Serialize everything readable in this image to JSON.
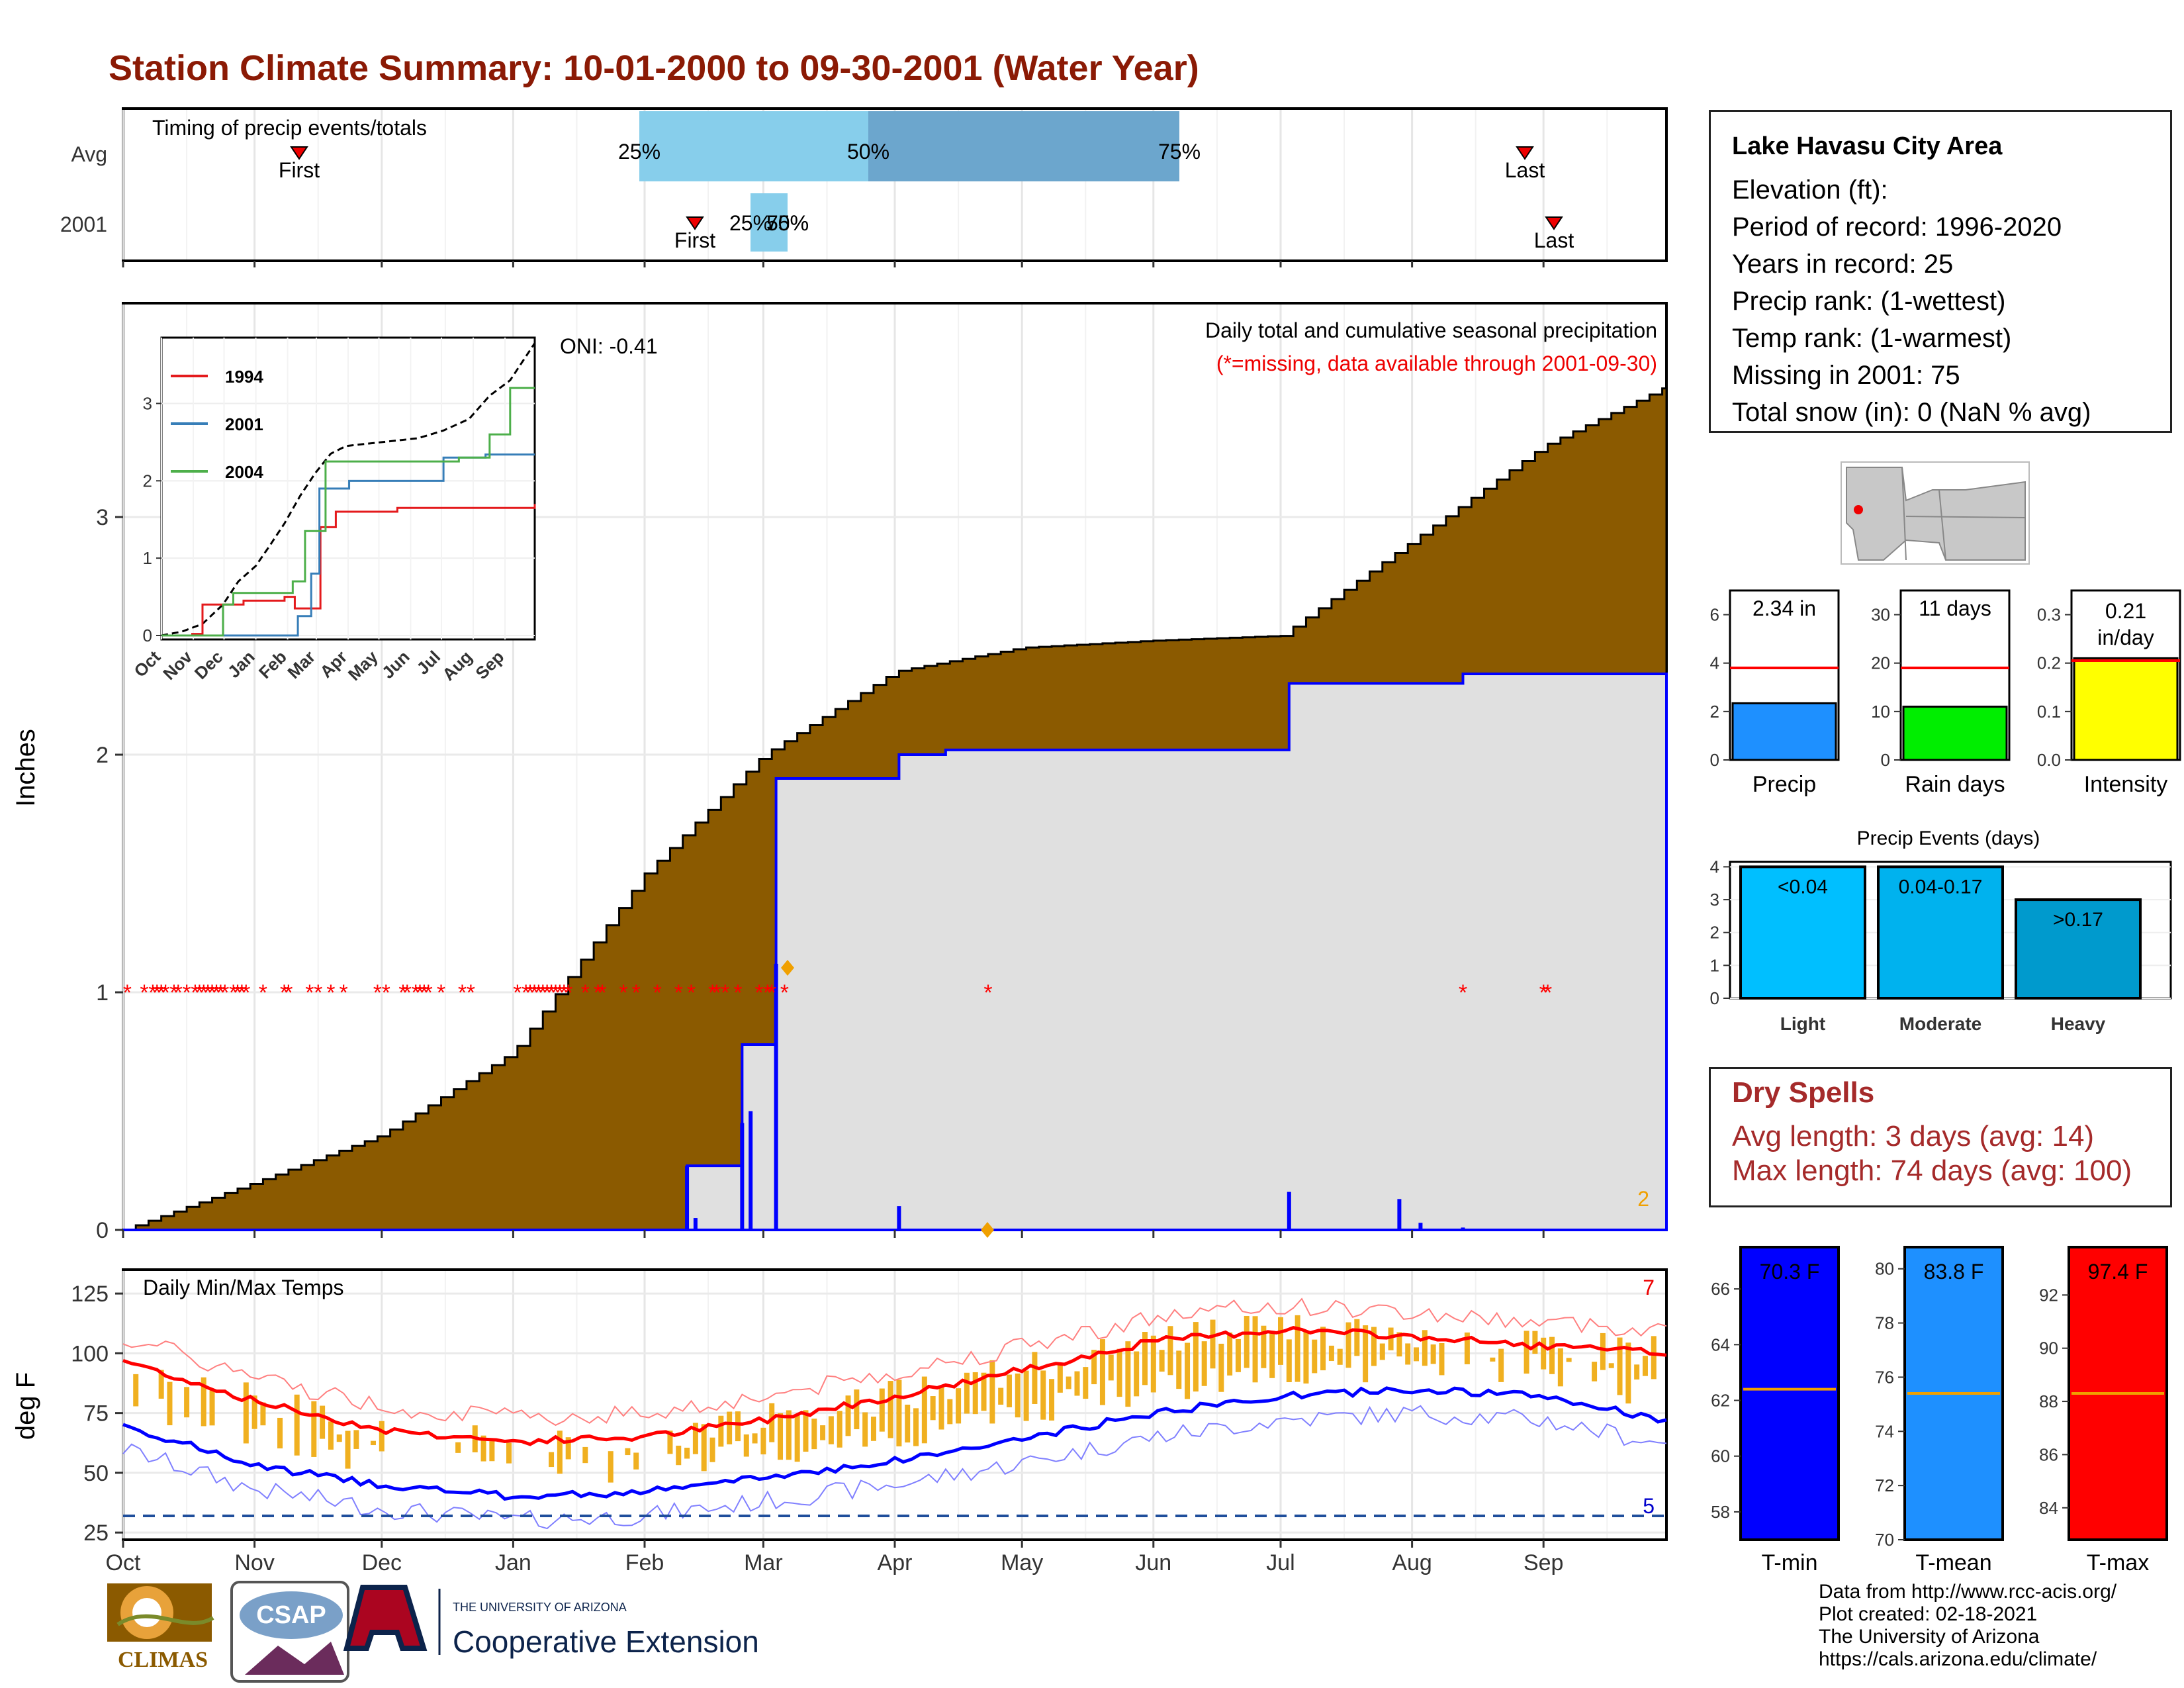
{
  "title": "Station Climate Summary: 10-01-2000 to 09-30-2001 (Water Year)",
  "colors": {
    "title": "#8b1a05",
    "cumulative": "#8b5a00",
    "avg_fill": "#e0e0e0",
    "precip_line": "#0000ff",
    "missing": "#ff0000",
    "bars_temp": "#f0b020",
    "tmax_line": "#ff0000",
    "tmin_line": "#0000ff"
  },
  "months": [
    "Oct",
    "Nov",
    "Dec",
    "Jan",
    "Feb",
    "Mar",
    "Apr",
    "May",
    "Jun",
    "Jul",
    "Aug",
    "Sep"
  ],
  "timing": {
    "label": "Timing of precip events/totals",
    "rows": [
      "Avg",
      "2001"
    ],
    "avg": {
      "first": "First",
      "last": "Last",
      "p25": "25%",
      "p50": "50%",
      "p75": "75%"
    },
    "y2001": {
      "first": "First",
      "last": "Last",
      "p25": "25%",
      "p50": "50%",
      "p75": "75%"
    }
  },
  "precip_panel": {
    "ylabel": "Inches",
    "yticks": [
      "0",
      "1",
      "2",
      "3"
    ],
    "caption": "Daily total and cumulative seasonal precipitation",
    "caption2": "(*=missing, data available through 2001-09-30)",
    "oni": "ONI: -0.41",
    "corner_count": "2"
  },
  "inset": {
    "months": [
      "Oct",
      "Nov",
      "Dec",
      "Jan",
      "Feb",
      "Mar",
      "Apr",
      "May",
      "Jun",
      "Jul",
      "Aug",
      "Sep"
    ],
    "yticks": [
      "0",
      "1",
      "2",
      "3"
    ],
    "legend": [
      {
        "name": "1994",
        "color": "#e41a1c"
      },
      {
        "name": "2001",
        "color": "#377eb8"
      },
      {
        "name": "2004",
        "color": "#4daf4a"
      }
    ]
  },
  "temp_panel": {
    "ylabel": "deg F",
    "title": "Daily Min/Max Temps",
    "yticks": [
      "25",
      "50",
      "75",
      "100",
      "125"
    ],
    "count_top": "7",
    "count_bottom": "5"
  },
  "station": {
    "name": "Lake Havasu City Area",
    "elevation": "Elevation (ft):",
    "period": "Period of record: 1996-2020",
    "years": "Years in record: 25",
    "precip_rank": "Precip rank:  (1-wettest)",
    "temp_rank": "Temp rank:  (1-warmest)",
    "missing": "Missing in 2001: 75",
    "snow": "Total snow (in): 0 (NaN % avg)"
  },
  "precip_summary": [
    {
      "label": "Precip",
      "value_label": "2.34 in",
      "value": 2.34,
      "avg": 3.8,
      "yticks": [
        "0",
        "2",
        "4",
        "6"
      ],
      "max": 7,
      "color": "#1e90ff"
    },
    {
      "label": "Rain days",
      "value_label": "11 days",
      "value": 11,
      "avg": 19,
      "yticks": [
        "0",
        "10",
        "20",
        "30"
      ],
      "max": 35,
      "color": "#00ee00"
    },
    {
      "label": "Intensity",
      "value_label": "0.21\nin/day",
      "value": 0.21,
      "avg": 0.205,
      "yticks": [
        "0.0",
        "0.1",
        "0.2",
        "0.3"
      ],
      "max": 0.35,
      "color": "#ffff00"
    }
  ],
  "events": {
    "title": "Precip Events (days)",
    "yticks": [
      "0",
      "1",
      "2",
      "3",
      "4"
    ],
    "categories": [
      "Light",
      "Moderate",
      "Heavy"
    ],
    "labels": [
      "<0.04",
      "0.04-0.17",
      ">0.17"
    ],
    "values": [
      4,
      4,
      3
    ],
    "colors": [
      "#00bfff",
      "#00b2ee",
      "#009acd"
    ]
  },
  "dry_spells": {
    "title": "Dry Spells",
    "avg": "Avg length: 3 days (avg: 14)",
    "max": "Max length: 74 days (avg: 100)"
  },
  "temp_summary": [
    {
      "label": "T-min",
      "value_label": "70.3 F",
      "avg": 62.4,
      "yticks": [
        "58",
        "60",
        "62",
        "64",
        "66"
      ],
      "ymin": 57,
      "ymax": 67.5,
      "color": "#0000ff"
    },
    {
      "label": "T-mean",
      "value_label": "83.8 F",
      "avg": 75.4,
      "yticks": [
        "70",
        "72",
        "74",
        "76",
        "78",
        "80"
      ],
      "ymin": 70,
      "ymax": 80.8,
      "color": "#1e90ff"
    },
    {
      "label": "T-max",
      "value_label": "97.4 F",
      "avg": 88.3,
      "yticks": [
        "84",
        "86",
        "88",
        "90",
        "92"
      ],
      "ymin": 82.8,
      "ymax": 93.8,
      "color": "#ff0000"
    }
  ],
  "footer": [
    "Data from http://www.rcc-acis.org/",
    "Plot created: 02-18-2021",
    "The University of Arizona",
    "https://cals.arizona.edu/climate/"
  ],
  "logos": {
    "climas": "CLIMAS",
    "csap": "CSAP",
    "ua_small": "THE UNIVERSITY OF ARIZONA",
    "ua_big": "Cooperative Extension"
  },
  "chart_data": [
    {
      "type": "area",
      "title": "Daily total and cumulative seasonal precipitation",
      "ylabel": "Inches",
      "ylim": [
        0,
        3.9
      ],
      "x_dates": [
        "10-01",
        "11-01",
        "12-01",
        "01-01",
        "02-01",
        "03-01",
        "04-01",
        "05-01",
        "06-01",
        "07-01",
        "08-01",
        "09-01",
        "09-30"
      ],
      "series": [
        {
          "name": "avg cumulative",
          "values": [
            0,
            0.2,
            0.4,
            0.75,
            1.5,
            2.0,
            2.35,
            2.45,
            2.48,
            2.5,
            2.9,
            3.3,
            3.55
          ]
        },
        {
          "name": "2001 cumulative",
          "values": [
            0,
            0,
            0,
            0,
            0,
            0.78,
            2.0,
            2.02,
            2.03,
            2.02,
            2.3,
            2.34,
            2.34
          ]
        }
      ]
    },
    {
      "type": "line",
      "title": "Daily Min/Max Temps",
      "ylabel": "deg F",
      "ylim": [
        22,
        135
      ],
      "x_dates": [
        "10-01",
        "11-01",
        "12-01",
        "01-01",
        "02-01",
        "03-01",
        "04-01",
        "05-01",
        "06-01",
        "07-01",
        "08-01",
        "09-01",
        "09-30"
      ],
      "series": [
        {
          "name": "avg max",
          "values": [
            97,
            80,
            68,
            63,
            65,
            72,
            82,
            93,
            105,
            110,
            107,
            103,
            100
          ]
        },
        {
          "name": "avg min",
          "values": [
            70,
            53,
            45,
            40,
            42,
            48,
            55,
            64,
            75,
            82,
            85,
            82,
            72
          ]
        }
      ]
    }
  ]
}
